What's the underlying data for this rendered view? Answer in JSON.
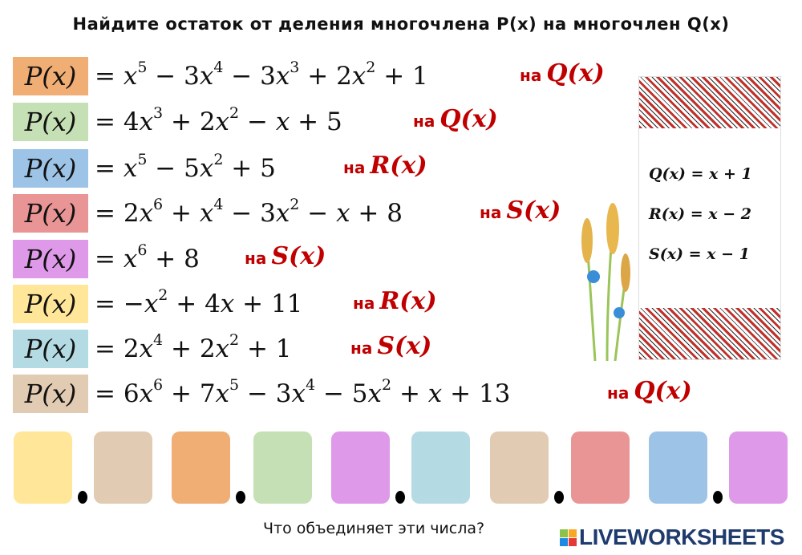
{
  "title": "Найдите остаток от деления многочлена P(x) на многочлен Q(x)",
  "divisor_prefix": "на",
  "rows": [
    {
      "label": "P(x)",
      "formula": "x^5 − 3x^4 − 3x^3 + 2x^2 + 1",
      "divisor": "Q(x)",
      "color": "#f0ad74"
    },
    {
      "label": "P(x)",
      "formula": "4x^3 + 2x^2 − x + 5",
      "divisor": "Q(x)",
      "color": "#c5e0b4"
    },
    {
      "label": "P(x)",
      "formula": "x^5 − 5x^2 + 5",
      "divisor": "R(x)",
      "color": "#9dc3e6"
    },
    {
      "label": "P(x)",
      "formula": "2x^6 + x^4 − 3x^2 − x + 8",
      "divisor": "S(x)",
      "color": "#e99595"
    },
    {
      "label": "P(x)",
      "formula": "x^6 + 8",
      "divisor": "S(x)",
      "color": "#de99e9"
    },
    {
      "label": "P(x)",
      "formula": "−x^2 + 4x + 11",
      "divisor": "R(x)",
      "color": "#ffe699"
    },
    {
      "label": "P(x)",
      "formula": "2x^4 + 2x^2 + 1",
      "divisor": "S(x)",
      "color": "#b4dae3"
    },
    {
      "label": "P(x)",
      "formula": "6x^6 + 7x^5 − 3x^4 − 5x^2 + x + 13",
      "divisor": "Q(x)",
      "color": "#e2cbb3"
    }
  ],
  "definitions": [
    "Q(x) = x + 1",
    "R(x) = x − 2",
    "S(x) = x − 1"
  ],
  "answer_boxes": [
    {
      "color": "#ffe699",
      "value": ""
    },
    {
      "color": "#e2cbb3",
      "value": ""
    },
    {
      "color": "#f0ad74",
      "value": ""
    },
    {
      "color": "#c5e0b4",
      "value": ""
    },
    {
      "color": "#de99e9",
      "value": ""
    },
    {
      "color": "#b4dae3",
      "value": ""
    },
    {
      "color": "#e2cbb3",
      "value": ""
    },
    {
      "color": "#e99595",
      "value": ""
    },
    {
      "color": "#9dc3e6",
      "value": ""
    },
    {
      "color": "#de99e9",
      "value": ""
    }
  ],
  "question": "Что объединяет эти числа?",
  "logo": "LIVEWORKSHEETS"
}
